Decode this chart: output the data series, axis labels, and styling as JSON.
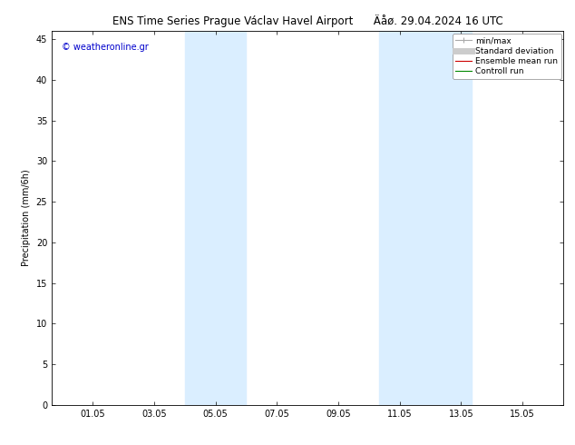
{
  "title_left": "ENS Time Series Prague Václav Havel Airport",
  "title_right": "Äåø. 29.04.2024 16 UTC",
  "ylabel": "Precipitation (mm/6h)",
  "watermark": "© weatheronline.gr",
  "xtick_labels": [
    "01.05",
    "03.05",
    "05.05",
    "07.05",
    "09.05",
    "11.05",
    "13.05",
    "15.05"
  ],
  "xtick_positions": [
    1.333,
    3.333,
    5.333,
    7.333,
    9.333,
    11.333,
    13.333,
    15.333
  ],
  "xlim": [
    0,
    16.667
  ],
  "ylim": [
    0,
    46
  ],
  "ytick_positions": [
    0,
    5,
    10,
    15,
    20,
    25,
    30,
    35,
    40,
    45
  ],
  "ytick_labels": [
    "0",
    "5",
    "10",
    "15",
    "20",
    "25",
    "30",
    "35",
    "40",
    "45"
  ],
  "shaded_bands": [
    {
      "xmin": 4.333,
      "xmax": 5.0,
      "color": "#daeeff"
    },
    {
      "xmin": 5.0,
      "xmax": 6.333,
      "color": "#daeeff"
    },
    {
      "xmin": 10.667,
      "xmax": 11.667,
      "color": "#daeeff"
    },
    {
      "xmin": 11.667,
      "xmax": 13.667,
      "color": "#daeeff"
    }
  ],
  "legend_entries": [
    {
      "label": "min/max",
      "color": "#aaaaaa",
      "lw": 0.8
    },
    {
      "label": "Standard deviation",
      "color": "#cccccc",
      "lw": 5
    },
    {
      "label": "Ensemble mean run",
      "color": "#cc0000",
      "lw": 0.8
    },
    {
      "label": "Controll run",
      "color": "#008800",
      "lw": 0.8
    }
  ],
  "background_color": "#ffffff",
  "plot_bg_color": "#ffffff",
  "border_color": "#000000",
  "title_fontsize": 8.5,
  "watermark_color": "#0000cc",
  "watermark_fontsize": 7,
  "axis_label_fontsize": 7,
  "tick_fontsize": 7,
  "legend_fontsize": 6.5
}
